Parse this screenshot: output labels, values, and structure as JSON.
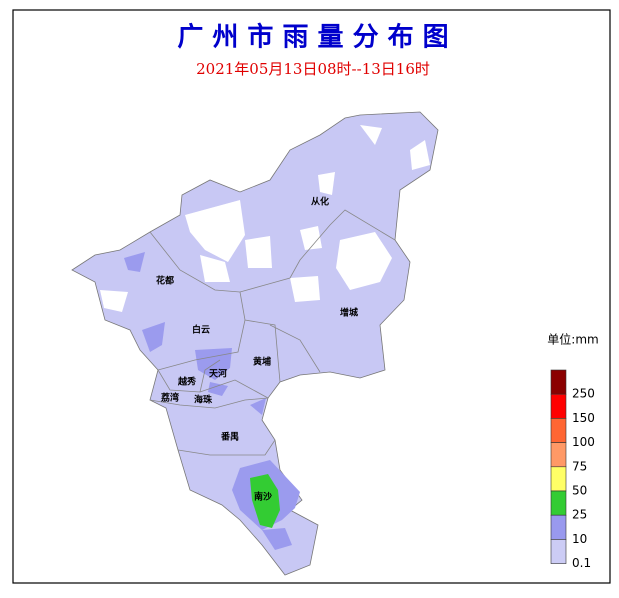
{
  "title": "广 州 市 雨 量 分 布 图",
  "subtitle": "2021年05月13日08时--13日16时",
  "districts": [
    "从化",
    "花都",
    "白云",
    "增城",
    "黄埔",
    "天河",
    "越秀",
    "荔湾",
    "海珠",
    "番禺",
    "南沙"
  ],
  "legend": {
    "title": "单位:mm",
    "items": [
      {
        "label": "250",
        "color": "#8b0000"
      },
      {
        "label": "150",
        "color": "#ff0000"
      },
      {
        "label": "100",
        "color": "#ff6633"
      },
      {
        "label": "75",
        "color": "#ff9966"
      },
      {
        "label": "50",
        "color": "#ffff66"
      },
      {
        "label": "25",
        "color": "#33cc33"
      },
      {
        "label": "10",
        "color": "#9999ee"
      },
      {
        "label": "0.1",
        "color": "#ccccf5"
      }
    ]
  }
}
